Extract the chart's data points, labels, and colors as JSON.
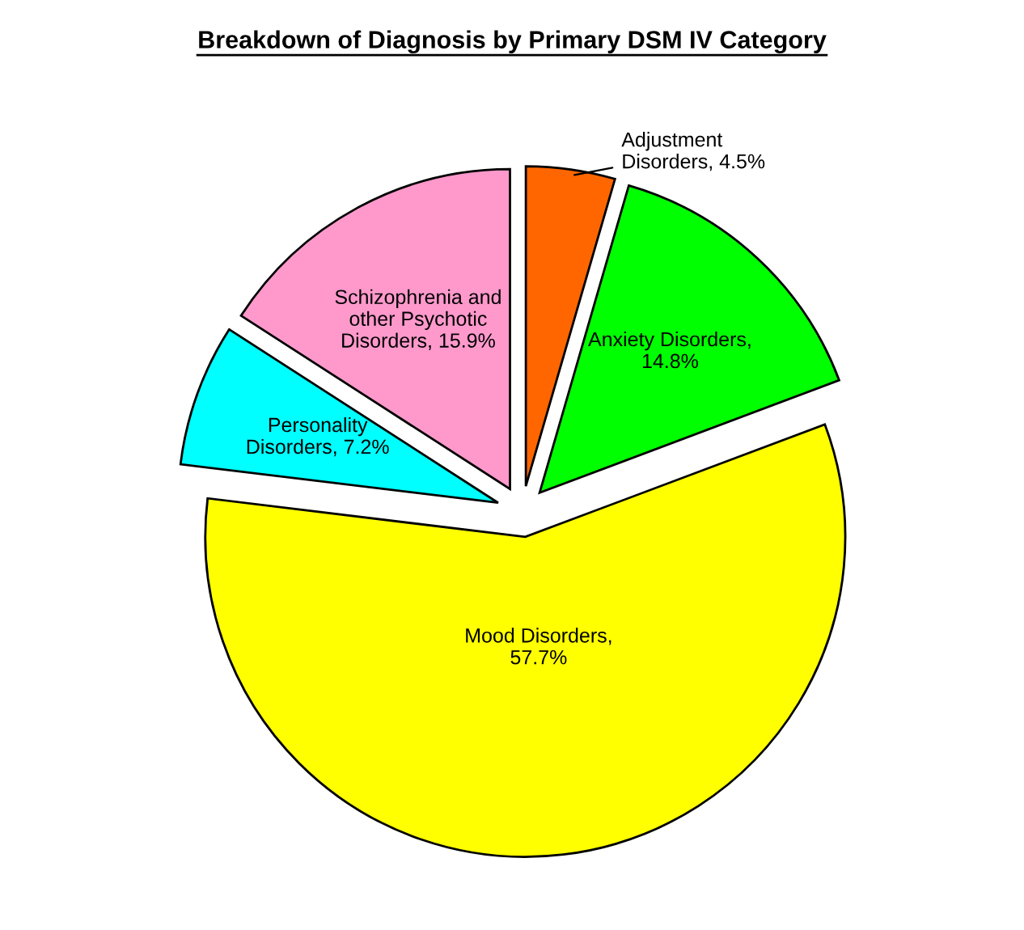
{
  "chart_data": {
    "type": "pie",
    "title": "Breakdown of Diagnosis by Primary DSM IV Category",
    "categories": [
      "Adjustment Disorders, 4.5%",
      "Anxiety Disorders, 14.8%",
      "Mood Disorders, 57.7%",
      "Personality Disorders, 7.2%",
      "Schizophrenia and other Psychotic Disorders, 15.9%"
    ],
    "values": [
      4.5,
      14.8,
      57.7,
      7.2,
      15.9
    ],
    "colors": [
      "#ff6600",
      "#00ff00",
      "#ffff00",
      "#00ffff",
      "#ff99cc"
    ],
    "legend": false
  }
}
